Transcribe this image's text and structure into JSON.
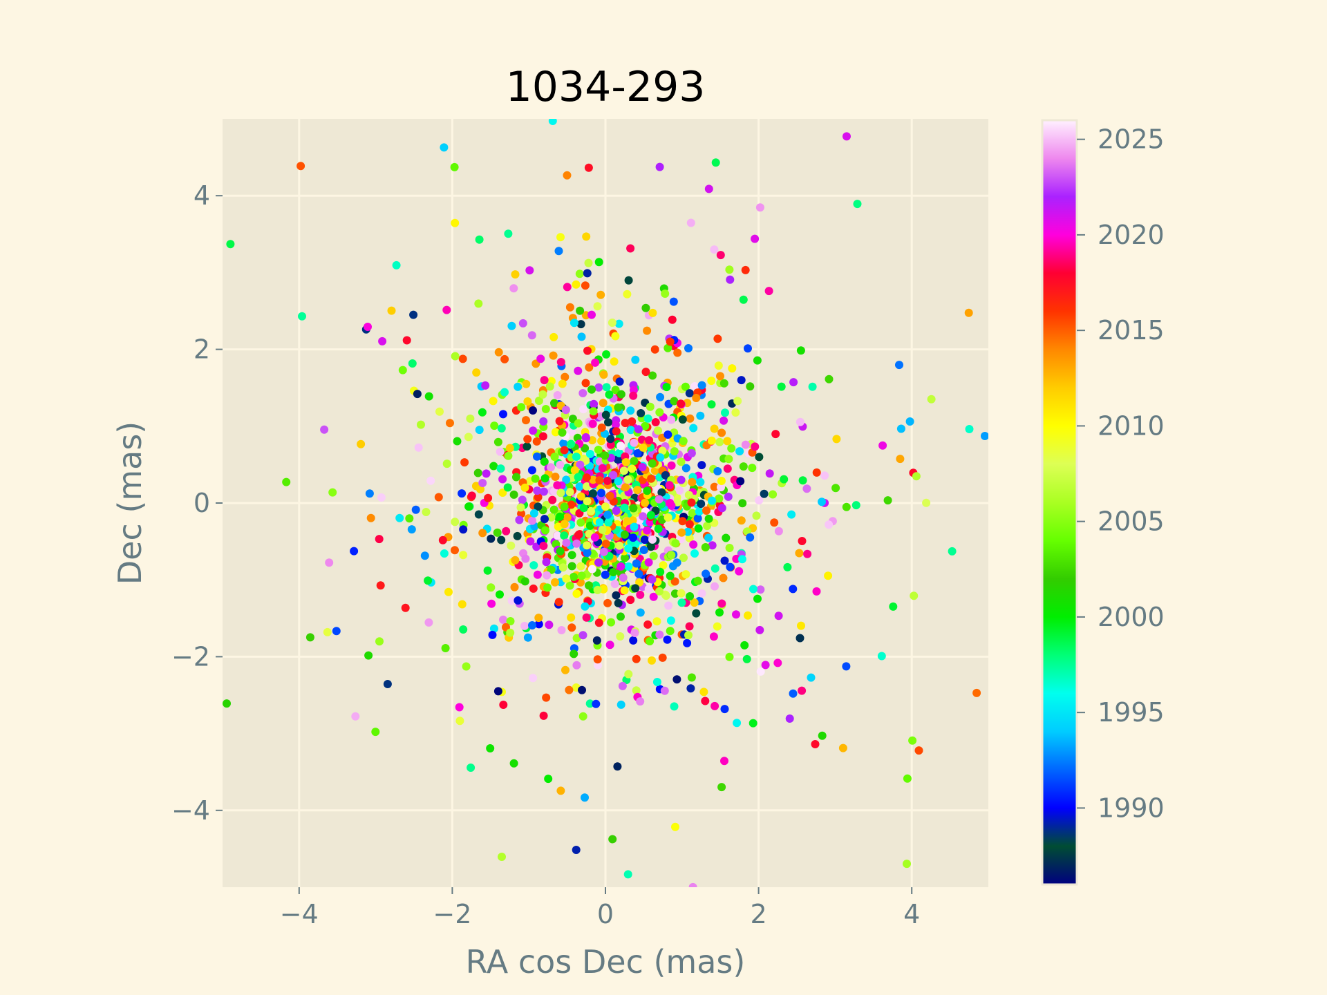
{
  "chart_data": {
    "type": "scatter",
    "title": "1034-293",
    "xlabel": "RA cos Dec (mas)",
    "ylabel": "Dec (mas)",
    "xlim": [
      -5,
      5
    ],
    "ylim": [
      -5,
      5
    ],
    "x_ticks": [
      -4,
      -2,
      0,
      2,
      4
    ],
    "y_ticks": [
      -4,
      -2,
      0,
      2,
      4
    ],
    "x_tick_labels": [
      "−4",
      "−2",
      "0",
      "2",
      "4"
    ],
    "y_tick_labels": [
      "−4",
      "−2",
      "0",
      "2",
      "4"
    ],
    "grid": true,
    "colorbar": {
      "label": "",
      "range": [
        1986,
        2026
      ],
      "ticks": [
        1990,
        1995,
        2000,
        2005,
        2010,
        2015,
        2020,
        2025
      ],
      "tick_labels": [
        "1990",
        "1995",
        "2000",
        "2005",
        "2010",
        "2015",
        "2020",
        "2025"
      ],
      "colormap": "gist_ncar"
    },
    "colors": {
      "figure_background": "#fdf6e3",
      "axes_background": "#eee8d5",
      "grid": "#fdf6e3",
      "text": "#657b83"
    },
    "point_count": 1600,
    "distribution": "dense cluster centred near (0.1, 0.0) mas, sigma about 1 mas with outliers spread to ±5 mas; epochs 1986-2026"
  }
}
